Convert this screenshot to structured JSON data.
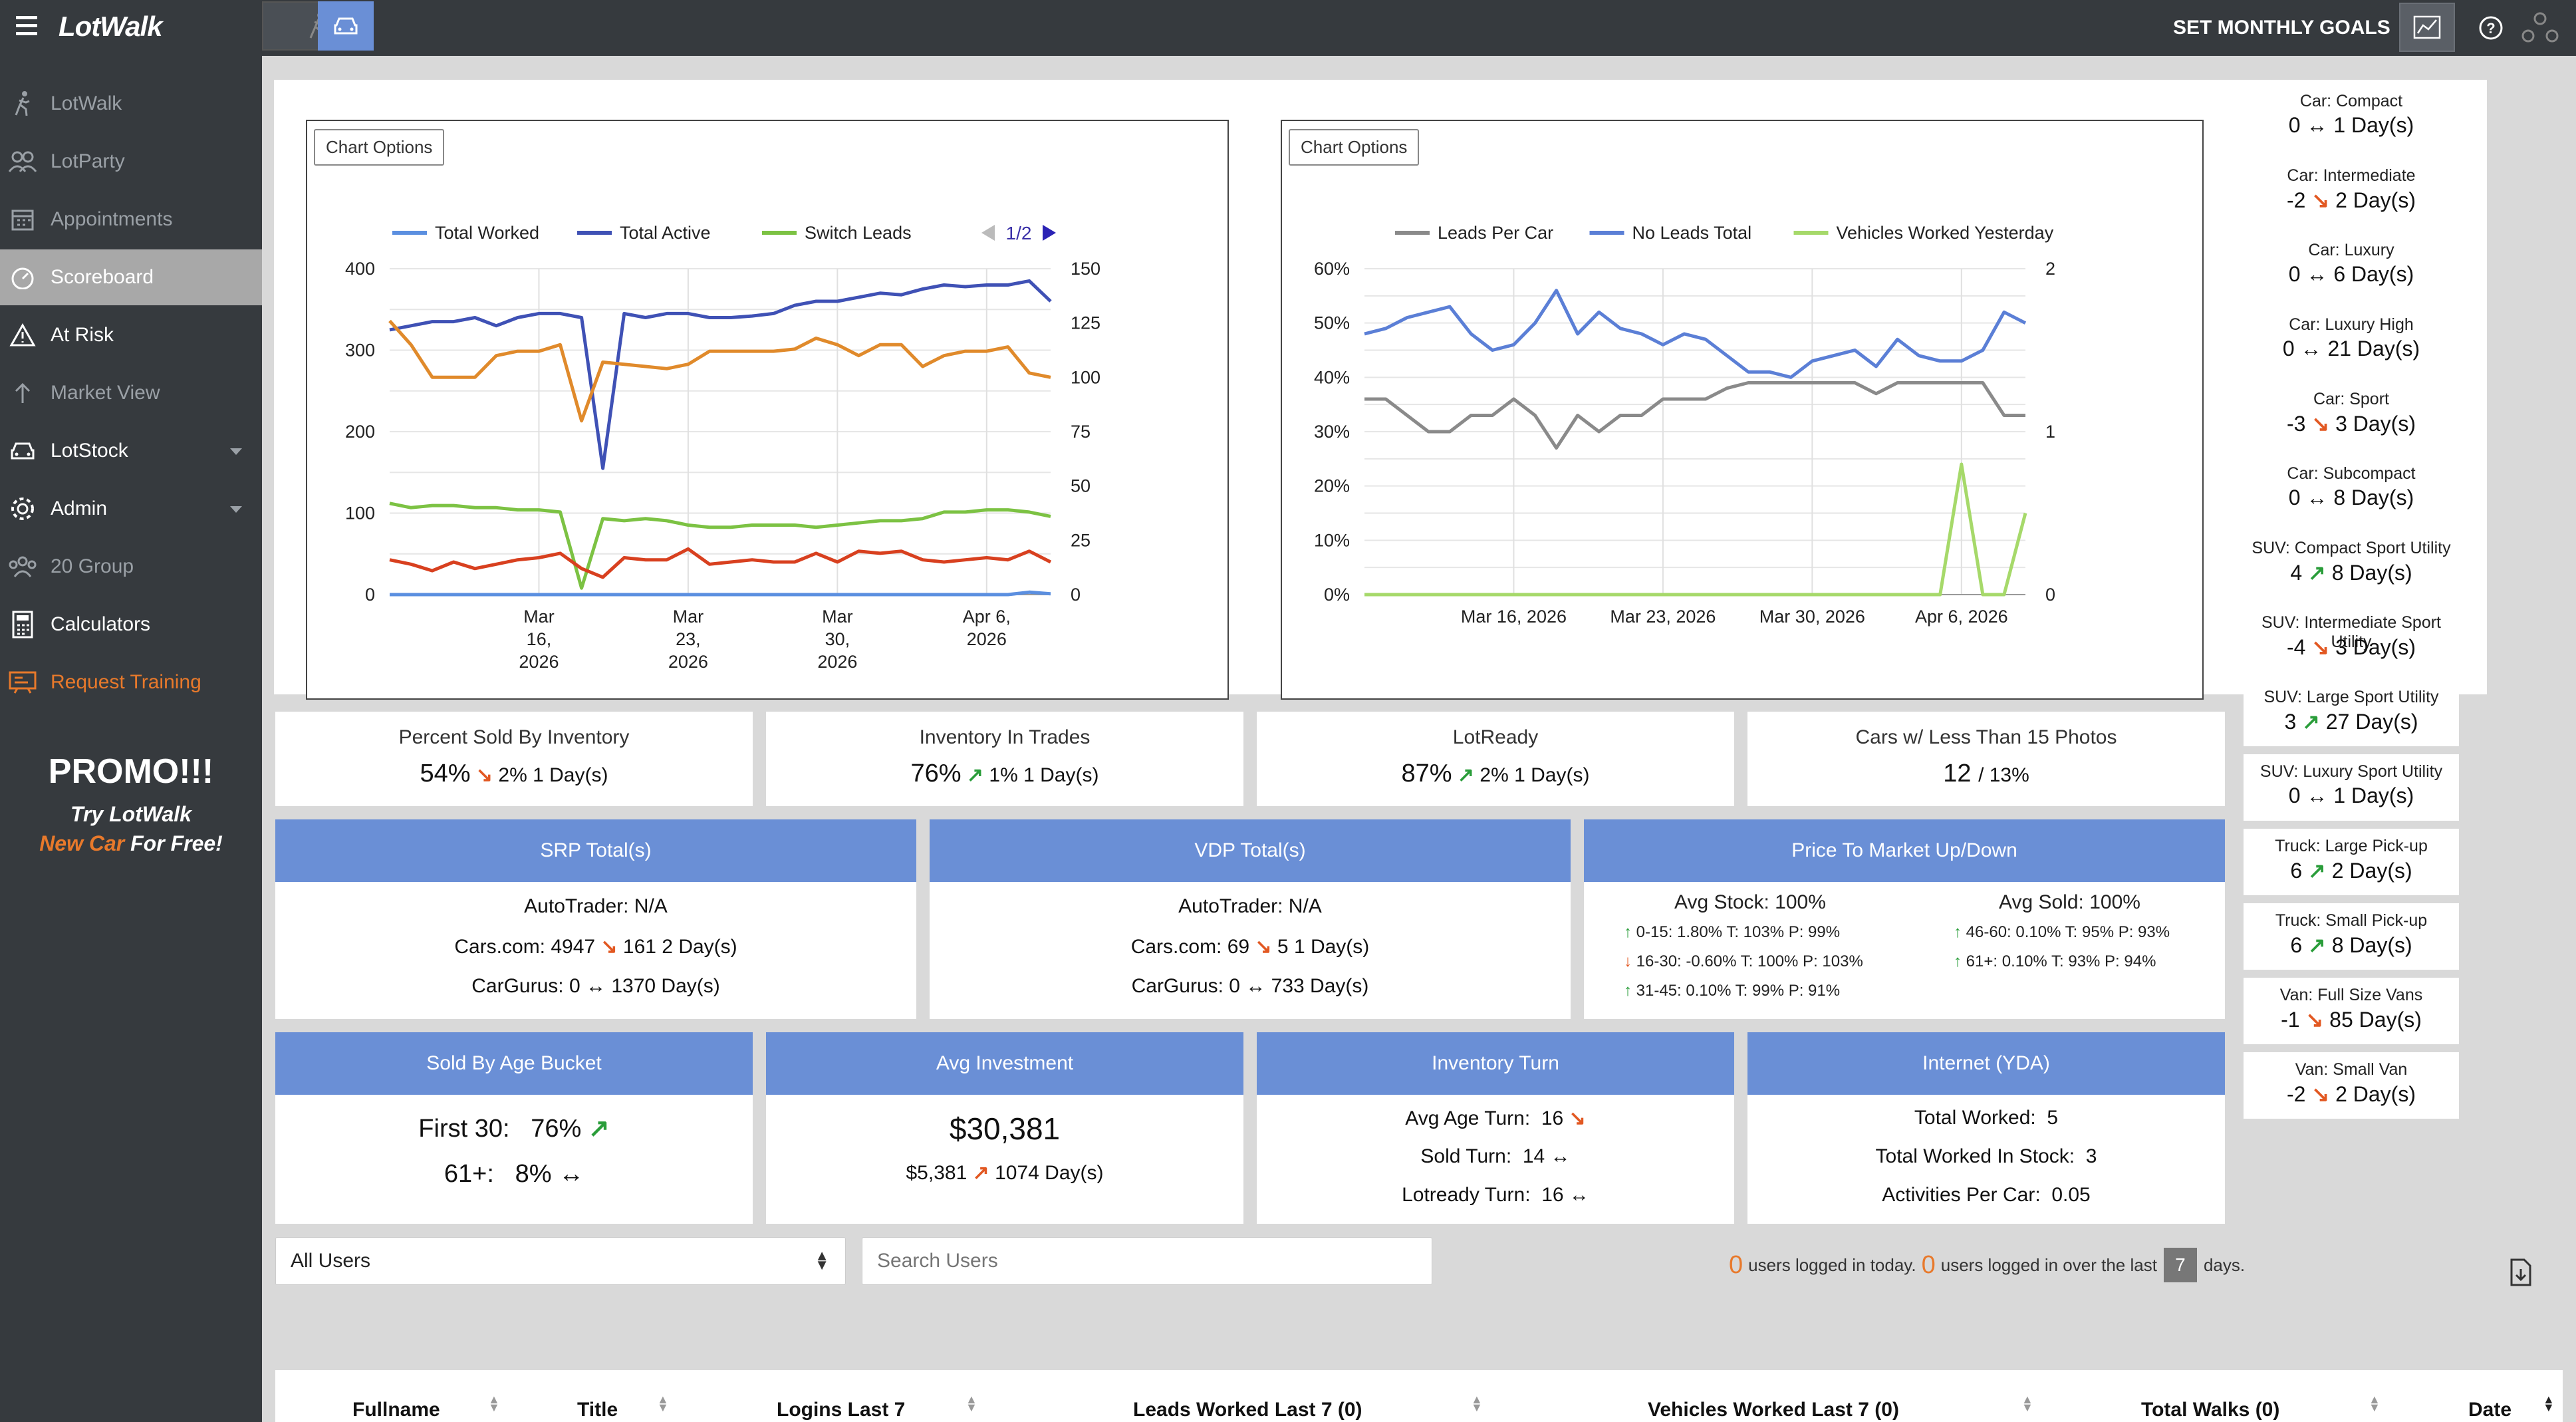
{
  "brand": {
    "logo_text": "LotWalk"
  },
  "topbar": {
    "goals_label": "SET MONTHLY GOALS",
    "icons": [
      "menu-icon",
      "walk-icon",
      "car-icon",
      "chart-icon",
      "help-icon",
      "network-icon"
    ]
  },
  "sidebar": {
    "items": [
      {
        "label": "LotWalk",
        "icon": "walk-icon"
      },
      {
        "label": "LotParty",
        "icon": "users-icon"
      },
      {
        "label": "Appointments",
        "icon": "calendar-icon"
      },
      {
        "label": "Scoreboard",
        "icon": "gauge-icon"
      },
      {
        "label": "At Risk",
        "icon": "warning-icon"
      },
      {
        "label": "Market View",
        "icon": "upload-icon"
      },
      {
        "label": "LotStock",
        "icon": "car-icon"
      },
      {
        "label": "Admin",
        "icon": "gear-icon"
      },
      {
        "label": "20 Group",
        "icon": "group-icon"
      },
      {
        "label": "Calculators",
        "icon": "calculator-icon"
      },
      {
        "label": "Request Training",
        "icon": "training-icon"
      }
    ],
    "promo": {
      "title": "PROMO!!!",
      "line1": "Try LotWalk",
      "line2_orange": "New Car",
      "line2_rest": "For Free!"
    }
  },
  "charts": {
    "options_label": "Chart Options",
    "page_indicator": "1/2"
  },
  "chart_data": [
    {
      "type": "line",
      "x": [
        "2026-03-09",
        "2026-03-10",
        "2026-03-11",
        "2026-03-12",
        "2026-03-13",
        "2026-03-14",
        "2026-03-15",
        "2026-03-16",
        "2026-03-17",
        "2026-03-18",
        "2026-03-19",
        "2026-03-20",
        "2026-03-21",
        "2026-03-22",
        "2026-03-23",
        "2026-03-24",
        "2026-03-25",
        "2026-03-26",
        "2026-03-27",
        "2026-03-28",
        "2026-03-29",
        "2026-03-30",
        "2026-03-31",
        "2026-04-01",
        "2026-04-02",
        "2026-04-03",
        "2026-04-04",
        "2026-04-05",
        "2026-04-06",
        "2026-04-07",
        "2026-04-08",
        "2026-04-09"
      ],
      "xticks": [
        {
          "date": "2026-03-16",
          "label": [
            "Mar",
            "16,",
            "2026"
          ]
        },
        {
          "date": "2026-03-23",
          "label": [
            "Mar",
            "23,",
            "2026"
          ]
        },
        {
          "date": "2026-03-30",
          "label": [
            "Mar",
            "30,",
            "2026"
          ]
        },
        {
          "date": "2026-04-06",
          "label": [
            "Apr 6,",
            "2026"
          ]
        }
      ],
      "yleft": {
        "min": 0,
        "max": 400,
        "ticks": [
          "0",
          "100",
          "200",
          "300",
          "400"
        ]
      },
      "yright": {
        "min": 0,
        "max": 150,
        "ticks": [
          "0",
          "25",
          "50",
          "75",
          "100",
          "125",
          "150"
        ]
      },
      "legend_position": "top",
      "series": [
        {
          "name": "Total Worked",
          "axis": "left",
          "color": "#5b8fe0",
          "values": [
            0,
            0,
            0,
            0,
            0,
            0,
            0,
            0,
            0,
            0,
            0,
            0,
            0,
            0,
            0,
            0,
            0,
            0,
            0,
            0,
            0,
            0,
            0,
            0,
            0,
            0,
            0,
            0,
            0,
            0,
            3,
            1
          ]
        },
        {
          "name": "Total Active",
          "axis": "left",
          "color": "#3f51b5",
          "values": [
            325,
            330,
            335,
            335,
            340,
            330,
            340,
            345,
            345,
            340,
            155,
            345,
            340,
            345,
            345,
            340,
            340,
            342,
            345,
            355,
            360,
            360,
            365,
            370,
            368,
            375,
            380,
            378,
            380,
            380,
            385,
            360
          ]
        },
        {
          "name": "Switch Leads",
          "axis": "right",
          "color": "#7cc243",
          "values": [
            42,
            40,
            41,
            41,
            40,
            40,
            39,
            39,
            38,
            3,
            35,
            34,
            35,
            34,
            32,
            31,
            31,
            32,
            32,
            32,
            31,
            32,
            33,
            34,
            34,
            35,
            38,
            38,
            39,
            39,
            38,
            36
          ]
        },
        {
          "name": "",
          "axis": "right",
          "color": "#e08a2b",
          "values": [
            126,
            115,
            100,
            100,
            100,
            110,
            112,
            112,
            115,
            80,
            107,
            106,
            105,
            104,
            106,
            112,
            112,
            112,
            112,
            113,
            118,
            115,
            110,
            115,
            115,
            105,
            110,
            112,
            112,
            114,
            102,
            100
          ]
        },
        {
          "name": "",
          "axis": "right",
          "color": "#d8401f",
          "values": [
            16,
            14,
            11,
            15,
            12,
            14,
            16,
            17,
            19,
            12,
            8,
            17,
            16,
            16,
            21,
            14,
            15,
            16,
            15,
            15,
            19,
            15,
            20,
            19,
            20,
            16,
            15,
            16,
            17,
            16,
            20,
            15
          ]
        }
      ]
    },
    {
      "type": "line",
      "x": [
        "2026-03-09",
        "2026-03-10",
        "2026-03-11",
        "2026-03-12",
        "2026-03-13",
        "2026-03-14",
        "2026-03-15",
        "2026-03-16",
        "2026-03-17",
        "2026-03-18",
        "2026-03-19",
        "2026-03-20",
        "2026-03-21",
        "2026-03-22",
        "2026-03-23",
        "2026-03-24",
        "2026-03-25",
        "2026-03-26",
        "2026-03-27",
        "2026-03-28",
        "2026-03-29",
        "2026-03-30",
        "2026-03-31",
        "2026-04-01",
        "2026-04-02",
        "2026-04-03",
        "2026-04-04",
        "2026-04-05",
        "2026-04-06",
        "2026-04-07",
        "2026-04-08",
        "2026-04-09"
      ],
      "xticks": [
        {
          "date": "2026-03-16",
          "label": [
            "Mar 16, 2026"
          ]
        },
        {
          "date": "2026-03-23",
          "label": [
            "Mar 23, 2026"
          ]
        },
        {
          "date": "2026-03-30",
          "label": [
            "Mar 30, 2026"
          ]
        },
        {
          "date": "2026-04-06",
          "label": [
            "Apr 6, 2026"
          ]
        }
      ],
      "yleft": {
        "min": 0,
        "max": 60,
        "ticks": [
          "0%",
          "10%",
          "20%",
          "30%",
          "40%",
          "50%",
          "60%"
        ]
      },
      "yright": {
        "min": 0,
        "max": 2,
        "ticks": [
          "0",
          "1",
          "2"
        ]
      },
      "legend_position": "top",
      "series": [
        {
          "name": "Leads Per Car",
          "axis": "left",
          "color": "#8a8a8a",
          "values": [
            36,
            36,
            33,
            30,
            30,
            33,
            33,
            36,
            33,
            27,
            33,
            30,
            33,
            33,
            36,
            36,
            36,
            38,
            39,
            39,
            39,
            39,
            39,
            39,
            37,
            39,
            39,
            39,
            39,
            39,
            33,
            33
          ]
        },
        {
          "name": "No Leads Total",
          "axis": "left",
          "color": "#5b7fd6",
          "values": [
            48,
            49,
            51,
            52,
            53,
            48,
            45,
            46,
            50,
            56,
            48,
            52,
            49,
            48,
            46,
            48,
            47,
            44,
            41,
            41,
            40,
            43,
            44,
            45,
            42,
            47,
            44,
            43,
            43,
            45,
            52,
            50
          ]
        },
        {
          "name": "Vehicles Worked Yesterday",
          "axis": "right",
          "color": "#a6d96a",
          "values": [
            0,
            0,
            0,
            0,
            0,
            0,
            0,
            0,
            0,
            0,
            0,
            0,
            0,
            0,
            0,
            0,
            0,
            0,
            0,
            0,
            0,
            0,
            0,
            0,
            0,
            0,
            0,
            0,
            0.8,
            0,
            0,
            0.5
          ]
        }
      ]
    }
  ],
  "stats": [
    {
      "title": "Percent Sold By Inventory",
      "value": "54%",
      "trend": "down",
      "delta": "2% 1 Day(s)"
    },
    {
      "title": "Inventory In Trades",
      "value": "76%",
      "trend": "up",
      "delta": "1% 1 Day(s)"
    },
    {
      "title": "LotReady",
      "value": "87%",
      "trend": "up",
      "delta": "2% 1 Day(s)"
    },
    {
      "title": "Cars w/ Less Than 15 Photos",
      "value": "12",
      "delta": "/ 13%"
    }
  ],
  "srp": {
    "title": "SRP Total(s)",
    "autotrader": "AutoTrader: N/A",
    "cars": "Cars.com: 4947",
    "cars_delta": "161 2 Day(s)",
    "cargurus": "CarGurus: 0",
    "cargurus_delta": "1370 Day(s)"
  },
  "vdp": {
    "title": "VDP Total(s)",
    "autotrader": "AutoTrader: N/A",
    "cars": "Cars.com: 69",
    "cars_delta": "5 1 Day(s)",
    "cargurus": "CarGurus: 0",
    "cargurus_delta": "733 Day(s)"
  },
  "ptm": {
    "title": "Price To Market Up/Down",
    "avg_stock": "Avg Stock: 100%",
    "avg_sold": "Avg Sold: 100%",
    "left": [
      {
        "dir": "up",
        "text": "0-15: 1.80% T: 103% P: 99%"
      },
      {
        "dir": "down",
        "text": "16-30: -0.60% T: 100% P: 103%"
      },
      {
        "dir": "up",
        "text": "31-45: 0.10% T: 99% P: 91%"
      }
    ],
    "right": [
      {
        "dir": "up",
        "text": "46-60: 0.10% T: 95% P: 93%"
      },
      {
        "dir": "up",
        "text": "61+: 0.10% T: 93% P: 94%"
      }
    ]
  },
  "age_bucket": {
    "title": "Sold By Age Bucket",
    "first30_label": "First 30:",
    "first30_value": "76%",
    "over61_label": "61+:",
    "over61_value": "8%"
  },
  "avg_investment": {
    "title": "Avg Investment",
    "value": "$30,381",
    "sub": "$5,381",
    "delta": "1074 Day(s)"
  },
  "inventory_turn": {
    "title": "Inventory Turn",
    "avg_age": "Avg Age Turn:",
    "avg_age_val": "16",
    "sold": "Sold Turn:",
    "sold_val": "14",
    "lotready": "Lotready Turn:",
    "lotready_val": "16"
  },
  "internet": {
    "title": "Internet (YDA)",
    "worked": "Total Worked:",
    "worked_val": "5",
    "in_stock": "Total Worked In Stock:",
    "in_stock_val": "3",
    "apc": "Activities Per Car:",
    "apc_val": "0.05"
  },
  "filters": {
    "users_select": "All Users",
    "search_placeholder": "Search Users",
    "today_count": "0",
    "today_text": "users logged in today.",
    "over_count": "0",
    "over_text": "users logged in over the last",
    "days_value": "7",
    "days_text": "days."
  },
  "table": {
    "columns": [
      "Fullname",
      "Title",
      "Logins Last 7",
      "Leads Worked Last 7 (0)",
      "Vehicles Worked Last 7 (0)",
      "Total Walks (0)",
      "Date"
    ]
  },
  "segments": [
    {
      "title": "Car: Compact",
      "value": "0",
      "trend": "flat",
      "days": "1 Day(s)"
    },
    {
      "title": "Car: Intermediate",
      "value": "-2",
      "trend": "down",
      "days": "2 Day(s)"
    },
    {
      "title": "Car: Luxury",
      "value": "0",
      "trend": "flat",
      "days": "6 Day(s)"
    },
    {
      "title": "Car: Luxury High",
      "value": "0",
      "trend": "flat",
      "days": "21 Day(s)"
    },
    {
      "title": "Car: Sport",
      "value": "-3",
      "trend": "down",
      "days": "3 Day(s)"
    },
    {
      "title": "Car: Subcompact",
      "value": "0",
      "trend": "flat",
      "days": "8 Day(s)"
    },
    {
      "title": "SUV: Compact Sport Utility",
      "value": "4",
      "trend": "up",
      "days": "8 Day(s)"
    },
    {
      "title": "SUV: Intermediate Sport Utility",
      "value": "-4",
      "trend": "down",
      "days": "3 Day(s)"
    },
    {
      "title": "SUV: Large Sport Utility",
      "value": "3",
      "trend": "up",
      "days": "27 Day(s)"
    },
    {
      "title": "SUV: Luxury Sport Utility",
      "value": "0",
      "trend": "flat",
      "days": "1 Day(s)"
    },
    {
      "title": "Truck: Large Pick-up",
      "value": "6",
      "trend": "up",
      "days": "2 Day(s)"
    },
    {
      "title": "Truck: Small Pick-up",
      "value": "6",
      "trend": "up",
      "days": "8 Day(s)"
    },
    {
      "title": "Van: Full Size Vans",
      "value": "-1",
      "trend": "down",
      "days": "85 Day(s)"
    },
    {
      "title": "Van: Small Van",
      "value": "-2",
      "trend": "down",
      "days": "2 Day(s)"
    }
  ]
}
